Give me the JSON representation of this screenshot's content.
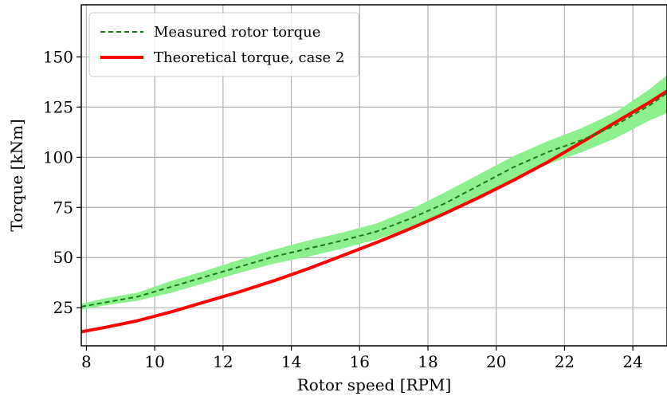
{
  "chart_data": {
    "type": "line",
    "xlabel": "Rotor speed [RPM]",
    "ylabel": "Torque [kNm]",
    "xlim": [
      7.85,
      25.0
    ],
    "ylim": [
      6,
      176
    ],
    "x_ticks": [
      8,
      10,
      12,
      14,
      16,
      18,
      20,
      22,
      24
    ],
    "y_ticks": [
      25,
      50,
      75,
      100,
      125,
      150
    ],
    "grid": true,
    "legend_position": "top-left",
    "series": [
      {
        "name": "Measured rotor torque",
        "style": "dashed",
        "color": "#1a7a1a",
        "band_color": "#8cf08c",
        "x": [
          7.85,
          8.5,
          9.5,
          10.5,
          11.5,
          12.5,
          13.5,
          14.5,
          15.5,
          16.5,
          17.5,
          18.5,
          19.5,
          20.5,
          21.5,
          22.5,
          23.5,
          24.5,
          25.0
        ],
        "y": [
          25.5,
          27.5,
          30.5,
          35.5,
          40.5,
          45.5,
          50.5,
          54.5,
          58.5,
          63,
          69.5,
          77,
          86,
          95,
          102.5,
          108.5,
          116,
          126,
          132
        ],
        "band_lower": [
          24,
          26,
          28.5,
          32.5,
          37.5,
          42.5,
          47,
          50.5,
          54.5,
          59,
          65,
          72,
          80.5,
          89,
          96.5,
          102.5,
          109.5,
          118.5,
          122
        ],
        "band_upper": [
          27,
          29.5,
          32.5,
          38.5,
          43.5,
          49,
          54,
          58.5,
          62.5,
          67,
          74,
          82.5,
          91.5,
          100.5,
          108,
          114.5,
          122.5,
          134,
          141
        ]
      },
      {
        "name": "Theoretical torque, case 2",
        "style": "solid",
        "color": "#ff0000",
        "x": [
          7.85,
          8.5,
          9.5,
          10.5,
          11.5,
          12.5,
          13.5,
          14.5,
          15.5,
          16.5,
          17.5,
          18.5,
          19.5,
          20.5,
          21.5,
          22.5,
          23.5,
          24.5,
          25.0
        ],
        "y": [
          13,
          15,
          18.5,
          23,
          28,
          33,
          38.5,
          44.5,
          51,
          57.5,
          64.5,
          72,
          80,
          88.5,
          97.5,
          107.5,
          117.5,
          127.5,
          133
        ]
      }
    ]
  }
}
